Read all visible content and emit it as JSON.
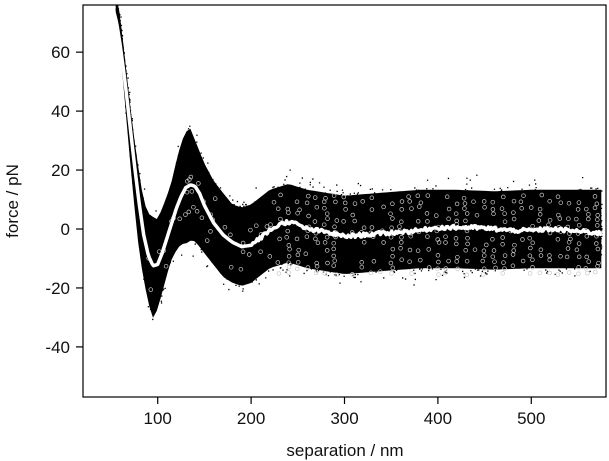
{
  "chart_data": {
    "type": "scatter",
    "title": "",
    "xlabel": "separation / nm",
    "ylabel": "force / pN",
    "xlim": [
      20,
      580
    ],
    "ylim": [
      -57,
      76
    ],
    "x_ticks": [
      100,
      200,
      300,
      400,
      500
    ],
    "y_ticks": [
      -40,
      -20,
      0,
      20,
      40,
      60
    ],
    "grid": false,
    "legend": "none",
    "colors": {
      "raw_points": "#000000",
      "binned_points": "#c8c8c8",
      "mean_curve": "#ffffff",
      "axes": "#000000"
    },
    "series": [
      {
        "kind": "raw-scatter",
        "description_of_values": "dense scatter of raw force measurements",
        "x": [
          55,
          60,
          65,
          70,
          75,
          80,
          85,
          90,
          95,
          100,
          105,
          110,
          115,
          120,
          125,
          130,
          135,
          140,
          145,
          150,
          160,
          170,
          180,
          190,
          200,
          220,
          240,
          260,
          280,
          300,
          340,
          380,
          420,
          460,
          500,
          540,
          575
        ],
        "y_center": [
          75,
          66,
          50,
          34,
          19,
          6,
          -4,
          -10,
          -13,
          -12,
          -7,
          -2,
          3,
          8,
          12,
          14,
          15,
          13,
          10,
          7,
          2,
          -2,
          -5,
          -6,
          -5,
          0,
          2,
          0,
          -1,
          -2,
          -1,
          0,
          0,
          -0.5,
          0,
          0,
          0
        ],
        "y_spread": [
          6,
          6,
          8,
          10,
          12,
          14,
          14,
          16,
          18,
          16,
          15,
          14,
          14,
          16,
          18,
          20,
          20,
          18,
          17,
          16,
          15,
          15,
          14,
          14,
          14,
          14,
          14,
          14,
          14,
          14,
          14,
          14,
          14,
          14,
          14,
          14,
          14
        ]
      },
      {
        "kind": "mean-curve",
        "x": [
          52,
          56,
          60,
          65,
          70,
          75,
          80,
          85,
          90,
          95,
          100,
          105,
          110,
          115,
          120,
          125,
          130,
          135,
          140,
          145,
          150,
          155,
          160,
          170,
          180,
          190,
          200,
          210,
          220,
          230,
          240,
          250,
          260,
          280,
          300,
          320,
          340,
          360,
          380,
          400,
          420,
          440,
          460,
          480,
          500,
          520,
          540,
          560,
          575
        ],
        "y": [
          75,
          70,
          62,
          50,
          36,
          22,
          9,
          -2,
          -9,
          -12.5,
          -12,
          -8,
          -3,
          2,
          7,
          11,
          14,
          15,
          14.5,
          12,
          8,
          5,
          2,
          -2,
          -4.5,
          -6,
          -5.5,
          -3,
          -0.5,
          1.5,
          2.5,
          1.5,
          0,
          -1,
          -2.5,
          -2,
          -1.5,
          -1,
          -0.5,
          0.5,
          0.5,
          0.5,
          0,
          -0.5,
          -0.5,
          0,
          -0.5,
          -1,
          -1.5
        ]
      },
      {
        "kind": "binned-circles",
        "y_levels": [
          -15,
          -13,
          -11,
          -9,
          -7,
          -5,
          -3,
          -1,
          1,
          3,
          5,
          7,
          9,
          11
        ],
        "x_start": 230,
        "x_end": 570,
        "x_step": 10
      }
    ]
  }
}
